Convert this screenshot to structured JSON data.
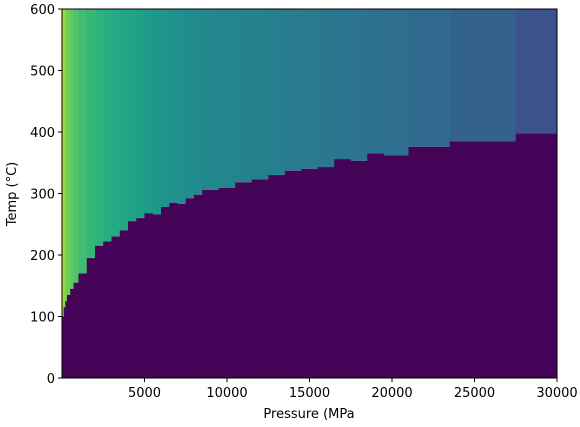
{
  "chart_data": {
    "type": "step-region",
    "xlabel": "Pressure (MPa",
    "ylabel": "Temp (°C)",
    "xlim": [
      0,
      30000
    ],
    "ylim": [
      0,
      600
    ],
    "xticks": [
      5000,
      10000,
      15000,
      20000,
      25000,
      30000
    ],
    "yticks": [
      0,
      100,
      200,
      300,
      400,
      500,
      600
    ],
    "x": [
      0,
      100,
      200,
      300,
      500,
      700,
      1000,
      1500,
      2000,
      2500,
      3000,
      3500,
      4000,
      4500,
      5000,
      5500,
      6000,
      6500,
      7000,
      7500,
      8000,
      8500,
      9500,
      10500,
      11500,
      12500,
      13500,
      14500,
      15500,
      16500,
      17500,
      18500,
      19500,
      21000,
      23500,
      27500
    ],
    "values": [
      100,
      115,
      125,
      135,
      145,
      155,
      170,
      195,
      215,
      222,
      230,
      240,
      255,
      260,
      268,
      266,
      278,
      285,
      283,
      292,
      298,
      306,
      309,
      318,
      323,
      330,
      337,
      340,
      343,
      356,
      353,
      365,
      362,
      376,
      385,
      398
    ],
    "upper_colors": [
      "#a8db34",
      "#8fd744",
      "#7ad151",
      "#6ccd5a",
      "#5ec962",
      "#4ec36b",
      "#40bd72",
      "#35b779",
      "#2eb37c",
      "#28ae80",
      "#24aa83",
      "#22a785",
      "#21a386",
      "#209f88",
      "#1f9a8a",
      "#1f978b",
      "#1f948c",
      "#20918c",
      "#208f8d",
      "#218c8d",
      "#228a8d",
      "#23888e",
      "#24858e",
      "#25838e",
      "#26818e",
      "#277e8e",
      "#287c8e",
      "#297a8e",
      "#2a778e",
      "#2b758e",
      "#2c738e",
      "#2d708e",
      "#2e6e8e",
      "#306a8e",
      "#33638d",
      "#3b528b"
    ],
    "lower_color": "#450457"
  }
}
